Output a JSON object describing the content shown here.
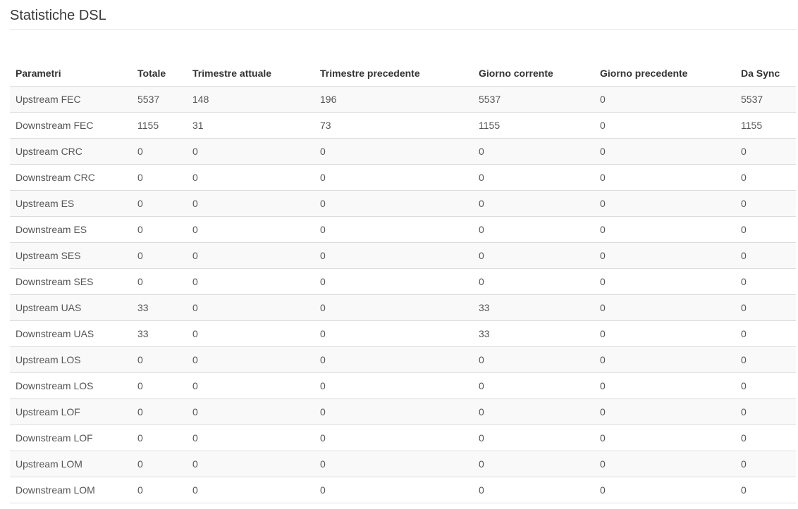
{
  "page": {
    "title": "Statistiche DSL"
  },
  "colors": {
    "stripe": "#f9f9f9",
    "row_border": "#dddddd",
    "title_rule": "#e5e5e5",
    "header_text": "#333333",
    "cell_text": "#555555",
    "title_text": "#3a3a3a"
  },
  "table": {
    "columns": [
      "Parametri",
      "Totale",
      "Trimestre attuale",
      "Trimestre precedente",
      "Giorno corrente",
      "Giorno precedente",
      "Da Sync"
    ],
    "rows": [
      {
        "label": "Upstream FEC",
        "values": [
          "5537",
          "148",
          "196",
          "5537",
          "0",
          "5537"
        ]
      },
      {
        "label": "Downstream FEC",
        "values": [
          "1155",
          "31",
          "73",
          "1155",
          "0",
          "1155"
        ]
      },
      {
        "label": "Upstream CRC",
        "values": [
          "0",
          "0",
          "0",
          "0",
          "0",
          "0"
        ]
      },
      {
        "label": "Downstream CRC",
        "values": [
          "0",
          "0",
          "0",
          "0",
          "0",
          "0"
        ]
      },
      {
        "label": "Upstream ES",
        "values": [
          "0",
          "0",
          "0",
          "0",
          "0",
          "0"
        ]
      },
      {
        "label": "Downstream ES",
        "values": [
          "0",
          "0",
          "0",
          "0",
          "0",
          "0"
        ]
      },
      {
        "label": "Upstream SES",
        "values": [
          "0",
          "0",
          "0",
          "0",
          "0",
          "0"
        ]
      },
      {
        "label": "Downstream SES",
        "values": [
          "0",
          "0",
          "0",
          "0",
          "0",
          "0"
        ]
      },
      {
        "label": "Upstream UAS",
        "values": [
          "33",
          "0",
          "0",
          "33",
          "0",
          "0"
        ]
      },
      {
        "label": "Downstream UAS",
        "values": [
          "33",
          "0",
          "0",
          "33",
          "0",
          "0"
        ]
      },
      {
        "label": "Upstream LOS",
        "values": [
          "0",
          "0",
          "0",
          "0",
          "0",
          "0"
        ]
      },
      {
        "label": "Downstream LOS",
        "values": [
          "0",
          "0",
          "0",
          "0",
          "0",
          "0"
        ]
      },
      {
        "label": "Upstream LOF",
        "values": [
          "0",
          "0",
          "0",
          "0",
          "0",
          "0"
        ]
      },
      {
        "label": "Downstream LOF",
        "values": [
          "0",
          "0",
          "0",
          "0",
          "0",
          "0"
        ]
      },
      {
        "label": "Upstream LOM",
        "values": [
          "0",
          "0",
          "0",
          "0",
          "0",
          "0"
        ]
      },
      {
        "label": "Downstream LOM",
        "values": [
          "0",
          "0",
          "0",
          "0",
          "0",
          "0"
        ]
      }
    ]
  }
}
